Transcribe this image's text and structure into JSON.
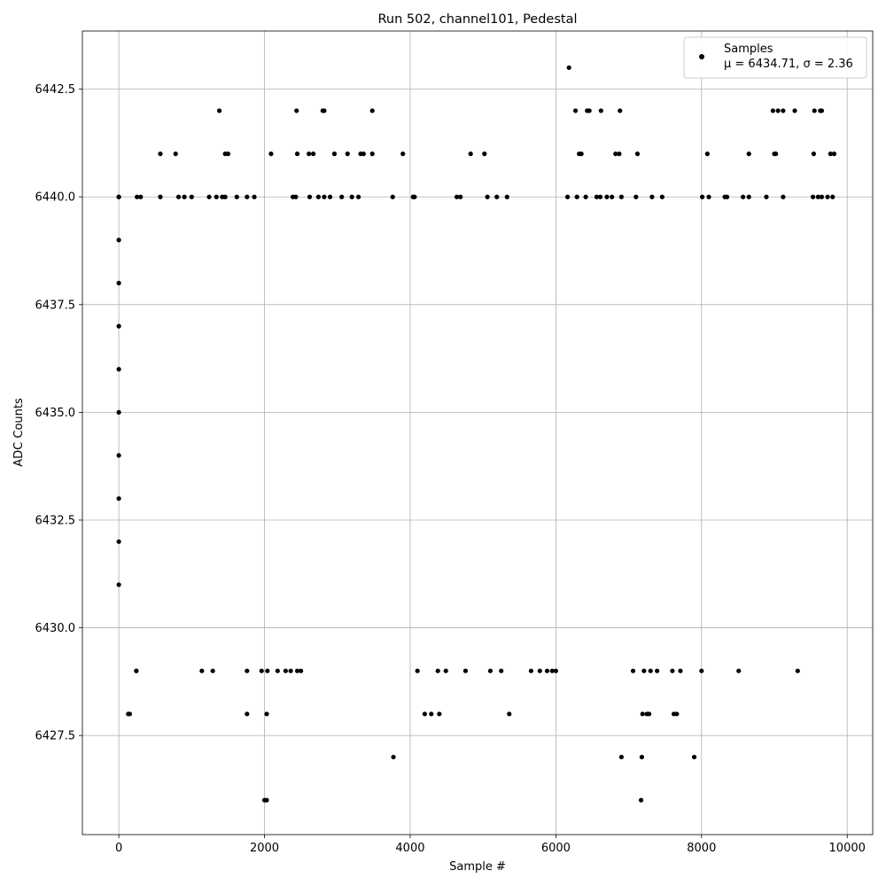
{
  "chart_data": {
    "type": "scatter",
    "title": "Run 502, channel101, Pedestal",
    "xlabel": "Sample #",
    "ylabel": "ADC Counts",
    "xlim": [
      -500,
      10350
    ],
    "ylim": [
      6425.2,
      6443.85
    ],
    "x_ticks": [
      0,
      2000,
      4000,
      6000,
      8000,
      10000
    ],
    "x_tick_labels": [
      "0",
      "2000",
      "4000",
      "6000",
      "8000",
      "10000"
    ],
    "y_ticks": [
      6427.5,
      6430.0,
      6432.5,
      6435.0,
      6437.5,
      6440.0,
      6442.5
    ],
    "y_tick_labels": [
      "6427.5",
      "6430.0",
      "6432.5",
      "6435.0",
      "6437.5",
      "6440.0",
      "6442.5"
    ],
    "grid": true,
    "legend": {
      "placement": "top-right",
      "series_label": "Samples",
      "stats_label": "μ = 6434.71, σ = 2.36"
    },
    "series": [
      {
        "name": "Samples",
        "color": "#000000",
        "points": [
          [
            0,
            6440
          ],
          [
            0,
            6439
          ],
          [
            0,
            6438
          ],
          [
            0,
            6437
          ],
          [
            0,
            6436
          ],
          [
            0,
            6435
          ],
          [
            0,
            6434
          ],
          [
            0,
            6433
          ],
          [
            0,
            6432
          ],
          [
            0,
            6431
          ],
          [
            130,
            6428
          ],
          [
            240,
            6429
          ],
          [
            2000,
            6426
          ],
          [
            2030,
            6426
          ],
          [
            3770,
            6427
          ],
          [
            6900,
            6427
          ],
          [
            7180,
            6427
          ],
          [
            7900,
            6427
          ],
          [
            7170,
            6426
          ],
          [
            150,
            6428
          ],
          [
            1760,
            6428
          ],
          [
            2030,
            6428
          ],
          [
            4200,
            6428
          ],
          [
            4290,
            6428
          ],
          [
            4400,
            6428
          ],
          [
            5360,
            6428
          ],
          [
            7190,
            6428
          ],
          [
            7250,
            6428
          ],
          [
            7280,
            6428
          ],
          [
            7620,
            6428
          ],
          [
            7660,
            6428
          ],
          [
            240,
            6429
          ],
          [
            1140,
            6429
          ],
          [
            1290,
            6429
          ],
          [
            1760,
            6429
          ],
          [
            1960,
            6429
          ],
          [
            2040,
            6429
          ],
          [
            2180,
            6429
          ],
          [
            2290,
            6429
          ],
          [
            2360,
            6429
          ],
          [
            2450,
            6429
          ],
          [
            2500,
            6429
          ],
          [
            4100,
            6429
          ],
          [
            4380,
            6429
          ],
          [
            4490,
            6429
          ],
          [
            4760,
            6429
          ],
          [
            5100,
            6429
          ],
          [
            5250,
            6429
          ],
          [
            5660,
            6429
          ],
          [
            5780,
            6429
          ],
          [
            5880,
            6429
          ],
          [
            5950,
            6429
          ],
          [
            6000,
            6429
          ],
          [
            7060,
            6429
          ],
          [
            7210,
            6429
          ],
          [
            7300,
            6429
          ],
          [
            7390,
            6429
          ],
          [
            7600,
            6429
          ],
          [
            7710,
            6429
          ],
          [
            8000,
            6429
          ],
          [
            8510,
            6429
          ],
          [
            9320,
            6429
          ],
          [
            6180,
            6443
          ],
          [
            1380,
            6442
          ],
          [
            2440,
            6442
          ],
          [
            2800,
            6442
          ],
          [
            2820,
            6442
          ],
          [
            3480,
            6442
          ],
          [
            6270,
            6442
          ],
          [
            6430,
            6442
          ],
          [
            6460,
            6442
          ],
          [
            6620,
            6442
          ],
          [
            6880,
            6442
          ],
          [
            8980,
            6442
          ],
          [
            9050,
            6442
          ],
          [
            9120,
            6442
          ],
          [
            9280,
            6442
          ],
          [
            9550,
            6442
          ],
          [
            9630,
            6442
          ],
          [
            9650,
            6442
          ],
          [
            570,
            6441
          ],
          [
            780,
            6441
          ],
          [
            1460,
            6441
          ],
          [
            1500,
            6441
          ],
          [
            2090,
            6441
          ],
          [
            2450,
            6441
          ],
          [
            2610,
            6441
          ],
          [
            2670,
            6441
          ],
          [
            2960,
            6441
          ],
          [
            3140,
            6441
          ],
          [
            3320,
            6441
          ],
          [
            3360,
            6441
          ],
          [
            3480,
            6441
          ],
          [
            3900,
            6441
          ],
          [
            4830,
            6441
          ],
          [
            5020,
            6441
          ],
          [
            6320,
            6441
          ],
          [
            6350,
            6441
          ],
          [
            6820,
            6441
          ],
          [
            6870,
            6441
          ],
          [
            7120,
            6441
          ],
          [
            8080,
            6441
          ],
          [
            8650,
            6441
          ],
          [
            9000,
            6441
          ],
          [
            9020,
            6441
          ],
          [
            9540,
            6441
          ],
          [
            9770,
            6441
          ],
          [
            9820,
            6441
          ],
          [
            0,
            6440
          ],
          [
            250,
            6440
          ],
          [
            300,
            6440
          ],
          [
            570,
            6440
          ],
          [
            820,
            6440
          ],
          [
            900,
            6440
          ],
          [
            1000,
            6440
          ],
          [
            1240,
            6440
          ],
          [
            1340,
            6440
          ],
          [
            1420,
            6440
          ],
          [
            1460,
            6440
          ],
          [
            1620,
            6440
          ],
          [
            1760,
            6440
          ],
          [
            1860,
            6440
          ],
          [
            2390,
            6440
          ],
          [
            2430,
            6440
          ],
          [
            2620,
            6440
          ],
          [
            2740,
            6440
          ],
          [
            2820,
            6440
          ],
          [
            2900,
            6440
          ],
          [
            3060,
            6440
          ],
          [
            3200,
            6440
          ],
          [
            3290,
            6440
          ],
          [
            3760,
            6440
          ],
          [
            4040,
            6440
          ],
          [
            4060,
            6440
          ],
          [
            4640,
            6440
          ],
          [
            4690,
            6440
          ],
          [
            5060,
            6440
          ],
          [
            5190,
            6440
          ],
          [
            5330,
            6440
          ],
          [
            6160,
            6440
          ],
          [
            6290,
            6440
          ],
          [
            6410,
            6440
          ],
          [
            6560,
            6440
          ],
          [
            6610,
            6440
          ],
          [
            6700,
            6440
          ],
          [
            6770,
            6440
          ],
          [
            6900,
            6440
          ],
          [
            7100,
            6440
          ],
          [
            7320,
            6440
          ],
          [
            7460,
            6440
          ],
          [
            8010,
            6440
          ],
          [
            8100,
            6440
          ],
          [
            8320,
            6440
          ],
          [
            8350,
            6440
          ],
          [
            8570,
            6440
          ],
          [
            8650,
            6440
          ],
          [
            8890,
            6440
          ],
          [
            9120,
            6440
          ],
          [
            9530,
            6440
          ],
          [
            9600,
            6440
          ],
          [
            9650,
            6440
          ],
          [
            9730,
            6440
          ],
          [
            9800,
            6440
          ]
        ]
      }
    ]
  }
}
